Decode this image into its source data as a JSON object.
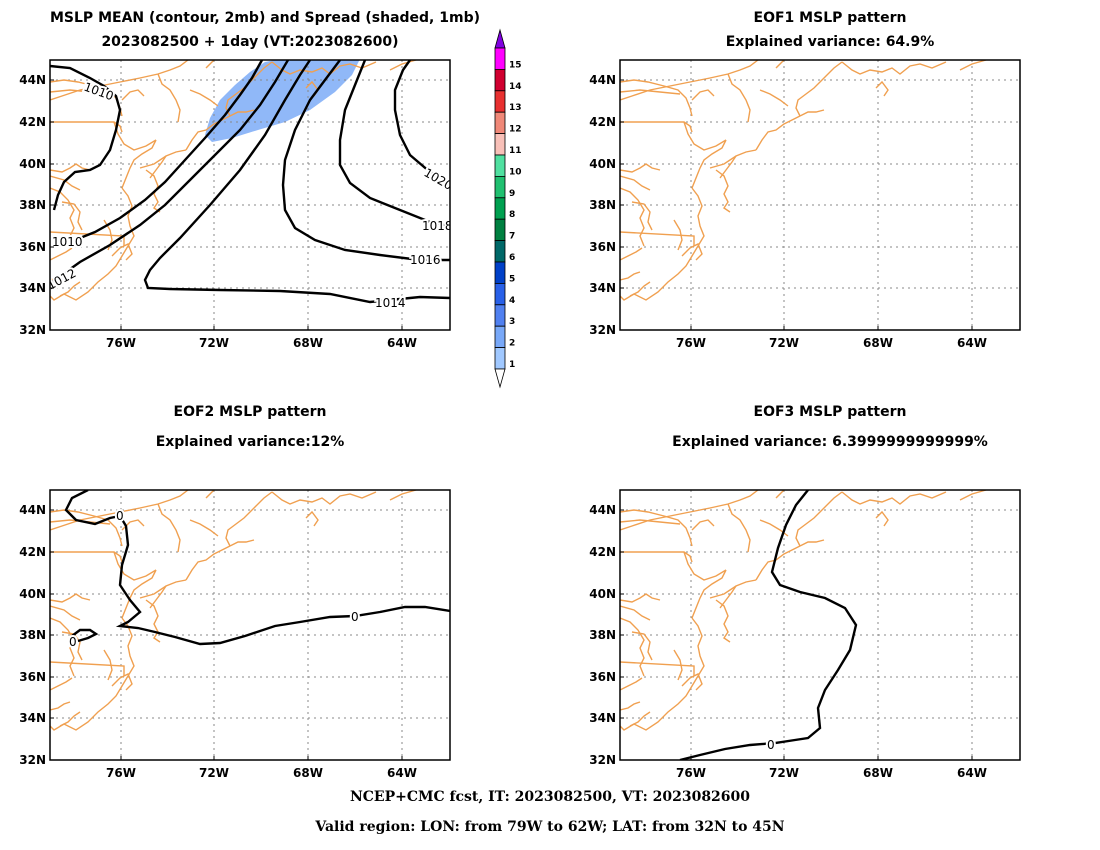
{
  "panels": [
    {
      "title1": "MSLP MEAN (contour, 2mb) and Spread (shaded, 1mb)",
      "title2": "2023082500 + 1day (VT:2023082600)",
      "contour_labels": [
        "1010",
        "1010",
        "1012",
        "1014",
        "1016",
        "1018",
        "1020"
      ]
    },
    {
      "title1": "EOF1 MSLP pattern",
      "title2": "Explained variance: 64.9%"
    },
    {
      "title1": "EOF2 MSLP pattern",
      "title2": "Explained variance:12%",
      "contour_labels": [
        "0",
        "0",
        "0"
      ]
    },
    {
      "title1": "EOF3 MSLP pattern",
      "title2": "Explained variance: 6.3999999999999%",
      "contour_labels": [
        "0"
      ]
    }
  ],
  "axes": {
    "lat_labels": [
      "44N",
      "42N",
      "40N",
      "38N",
      "36N",
      "34N",
      "32N"
    ],
    "lon_labels": [
      "76W",
      "72W",
      "68W",
      "64W"
    ]
  },
  "colorbar": {
    "labels": [
      "1",
      "2",
      "3",
      "4",
      "5",
      "6",
      "7",
      "8",
      "9",
      "10",
      "11",
      "12",
      "13",
      "14",
      "15"
    ],
    "colors": [
      "#a0c8ff",
      "#78a8f8",
      "#5080f0",
      "#2860e8",
      "#0040c8",
      "#006868",
      "#008040",
      "#00a050",
      "#20c070",
      "#50e0a0",
      "#f8c0b8",
      "#f08878",
      "#e83030",
      "#d00030",
      "#ff00ff"
    ],
    "top_color": "#8000e0"
  },
  "colors": {
    "coast": "#f0a050",
    "grid": "#888888",
    "contour": "#000000",
    "spread": "#90b8f8"
  },
  "footer": {
    "line1": "NCEP+CMC fcst, IT: 2023082500, VT: 2023082600",
    "line2": "Valid region: LON: from 79W to 62W; LAT: from 32N to 45N"
  }
}
